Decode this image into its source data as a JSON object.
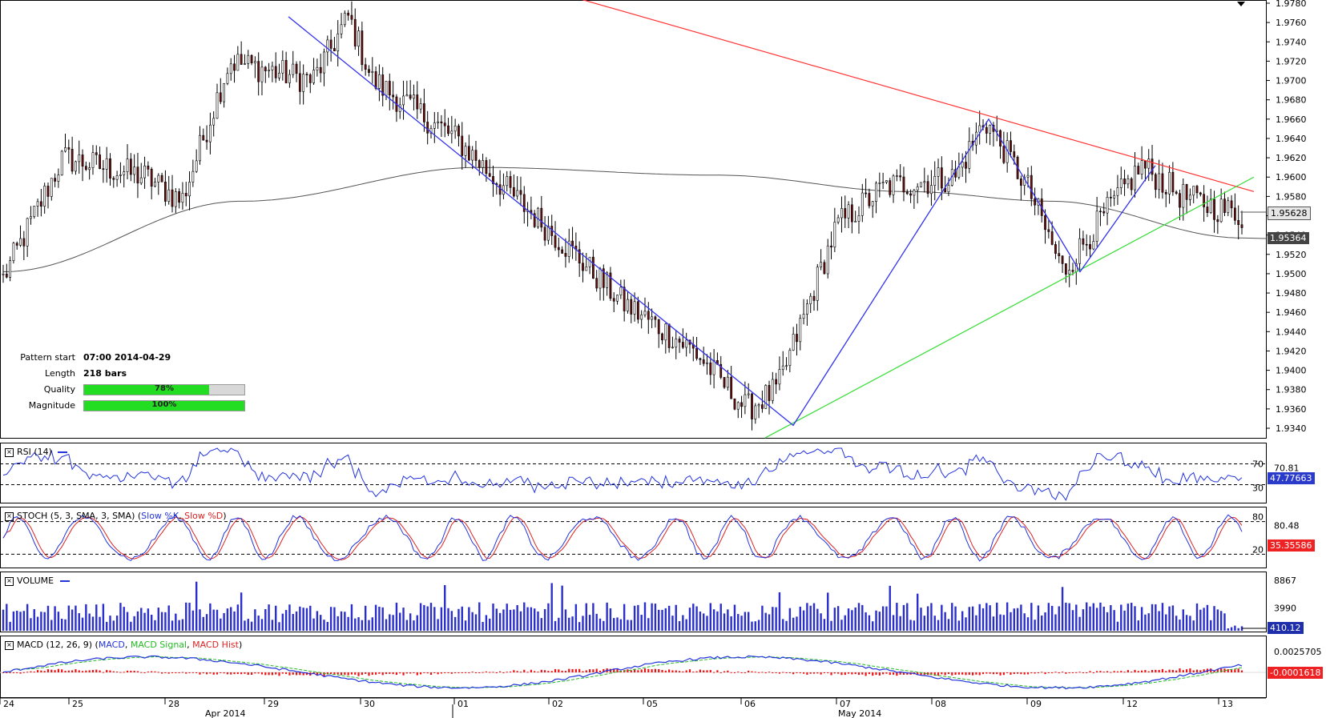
{
  "chart_data": [
    {
      "type": "candlestick",
      "panel": "price",
      "price_axis_ticks": [
        "1.9780",
        "1.9760",
        "1.9740",
        "1.9720",
        "1.9700",
        "1.9680",
        "1.9660",
        "1.9640",
        "1.9620",
        "1.9600",
        "1.9580",
        "1.9560",
        "1.9540",
        "1.9520",
        "1.9500",
        "1.9480",
        "1.9460",
        "1.9440",
        "1.9420",
        "1.9400",
        "1.9380",
        "1.9360",
        "1.9340"
      ],
      "ylim": [
        1.934,
        1.978
      ],
      "current_price_label": "1.95628",
      "moving_average_label": "1.95364",
      "x_tick_labels": [
        "24",
        "25",
        "28",
        "29",
        "30",
        "01",
        "02",
        "05",
        "06",
        "07",
        "08",
        "09",
        "12",
        "13"
      ],
      "month_labels": [
        "Apr 2014",
        "May 2014"
      ],
      "pattern_points": [
        {
          "x": "29",
          "y": 1.9766
        },
        {
          "x": "06",
          "y": 1.9343
        },
        {
          "x": "08",
          "y": 1.966
        },
        {
          "x": "09",
          "y": 1.9502
        },
        {
          "x": "12",
          "y": 1.9612
        }
      ],
      "trendlines": [
        {
          "name": "resistance",
          "color": "#ff3333",
          "start": 1.979,
          "end": 1.9585
        },
        {
          "name": "support",
          "color": "#33dd33",
          "start": 1.933,
          "end": 1.96
        }
      ],
      "annotation": {
        "pattern_start_label": "Pattern start",
        "pattern_start": "07:00 2014-04-29",
        "length_label": "Length",
        "length": "218 bars",
        "quality_label": "Quality",
        "quality": "78%",
        "quality_value": 0.78,
        "magnitude_label": "Magnitude",
        "magnitude": "100%",
        "magnitude_value": 1.0
      }
    },
    {
      "type": "line",
      "panel": "rsi",
      "title": "RSI (14)",
      "levels": [
        "70",
        "30"
      ],
      "axis_label": "70.81",
      "current_value": "47.77663",
      "ylim": [
        0,
        100
      ]
    },
    {
      "type": "line",
      "panel": "stoch",
      "title": "STOCH (5, 3, SMA, 3, SMA)",
      "series": [
        {
          "name": "Slow %K",
          "color": "#2233dd"
        },
        {
          "name": "Slow %D",
          "color": "#dd2222"
        }
      ],
      "levels": [
        "80",
        "20"
      ],
      "axis_label": "80.48",
      "current_value": "35.35586",
      "ylim": [
        0,
        100
      ]
    },
    {
      "type": "bar",
      "panel": "volume",
      "title": "VOLUME",
      "axis_ticks": [
        "8867",
        "3990"
      ],
      "current_value": "410.12"
    },
    {
      "type": "line",
      "panel": "macd",
      "title": "MACD (12, 26, 9)",
      "series": [
        {
          "name": "MACD",
          "color": "#2233dd"
        },
        {
          "name": "MACD Signal",
          "color": "#22bb22"
        },
        {
          "name": "MACD Hist",
          "color": "#dd2222"
        }
      ],
      "axis_label": "0.0025705",
      "current_value": "-0.0001618"
    }
  ],
  "colors": {
    "candle_up": "#ffffff",
    "candle_down": "#6a0f0f",
    "pattern_line": "#3333ee",
    "ma_line": "#555555",
    "panel_line": "#2233dd"
  }
}
